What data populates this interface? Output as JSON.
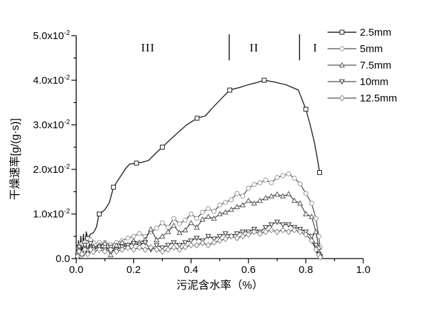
{
  "figure": {
    "background": "#ffffff",
    "line_color": "#1a1a1a"
  },
  "chart_data": {
    "type": "line",
    "title": "",
    "xlabel": "污泥含水率（%）",
    "ylabel": "干燥速率[g/(g·s)]",
    "xlim": [
      0,
      1.0
    ],
    "ylim": [
      0,
      0.05
    ],
    "grid": false,
    "legend_position": "top-right",
    "x_ticks": [
      {
        "value": 0.0,
        "label": "0.0"
      },
      {
        "value": 0.2,
        "label": "0.2"
      },
      {
        "value": 0.4,
        "label": "0.4"
      },
      {
        "value": 0.6,
        "label": "0.6"
      },
      {
        "value": 0.8,
        "label": "0.8"
      },
      {
        "value": 1.0,
        "label": "1.0"
      }
    ],
    "x_minor_ticks": [
      0.1,
      0.3,
      0.5,
      0.7,
      0.9
    ],
    "y_ticks": [
      {
        "value": 0.0,
        "label": "0.0",
        "exp": null
      },
      {
        "value": 0.01,
        "label": "1.0x10",
        "exp": "-2"
      },
      {
        "value": 0.02,
        "label": "2.0x10",
        "exp": "-2"
      },
      {
        "value": 0.03,
        "label": "3.0x10",
        "exp": "-2"
      },
      {
        "value": 0.04,
        "label": "4.0x10",
        "exp": "-2"
      },
      {
        "value": 0.05,
        "label": "5.0x10",
        "exp": "-2"
      }
    ],
    "y_minor_ticks": [
      0.005,
      0.015,
      0.025,
      0.035,
      0.045
    ],
    "regions": {
      "dividers_x": [
        0.533,
        0.778
      ],
      "labels": [
        {
          "text": "III",
          "x": 0.25
        },
        {
          "text": "II",
          "x": 0.62
        },
        {
          "text": "I",
          "x": 0.833
        }
      ]
    },
    "series": [
      {
        "name": "2.5mm",
        "marker": "square",
        "color": "#1a1a1a",
        "line_width": 1.4,
        "marker_every": 4,
        "points": [
          [
            0.005,
            0.0005
          ],
          [
            0.008,
            0.004
          ],
          [
            0.012,
            0.001
          ],
          [
            0.016,
            0.005
          ],
          [
            0.02,
            0.0015
          ],
          [
            0.025,
            0.0055
          ],
          [
            0.03,
            0.002
          ],
          [
            0.035,
            0.006
          ],
          [
            0.04,
            0.0045
          ],
          [
            0.05,
            0.0055
          ],
          [
            0.06,
            0.0058
          ],
          [
            0.07,
            0.007
          ],
          [
            0.08,
            0.01
          ],
          [
            0.09,
            0.0104
          ],
          [
            0.1,
            0.011
          ],
          [
            0.115,
            0.0125
          ],
          [
            0.13,
            0.016
          ],
          [
            0.15,
            0.018
          ],
          [
            0.17,
            0.02
          ],
          [
            0.186,
            0.0212
          ],
          [
            0.21,
            0.0214
          ],
          [
            0.23,
            0.0216
          ],
          [
            0.252,
            0.022
          ],
          [
            0.275,
            0.0235
          ],
          [
            0.3,
            0.025
          ],
          [
            0.326,
            0.0266
          ],
          [
            0.35,
            0.028
          ],
          [
            0.385,
            0.03
          ],
          [
            0.421,
            0.0315
          ],
          [
            0.45,
            0.032
          ],
          [
            0.47,
            0.0335
          ],
          [
            0.5,
            0.0355
          ],
          [
            0.535,
            0.0378
          ],
          [
            0.57,
            0.0384
          ],
          [
            0.6,
            0.039
          ],
          [
            0.625,
            0.0394
          ],
          [
            0.655,
            0.04
          ],
          [
            0.69,
            0.0396
          ],
          [
            0.73,
            0.039
          ],
          [
            0.774,
            0.0378
          ],
          [
            0.8,
            0.0335
          ],
          [
            0.815,
            0.03
          ],
          [
            0.83,
            0.026
          ],
          [
            0.84,
            0.0225
          ],
          [
            0.848,
            0.0193
          ]
        ]
      },
      {
        "name": "5mm",
        "marker": "circle",
        "color": "#999999",
        "line_width": 1,
        "marker_every": 1,
        "points": [
          [
            0.005,
            0.001
          ],
          [
            0.01,
            0.0028
          ],
          [
            0.015,
            0.0006
          ],
          [
            0.02,
            0.0032
          ],
          [
            0.025,
            0.0012
          ],
          [
            0.03,
            0.0036
          ],
          [
            0.04,
            0.002
          ],
          [
            0.05,
            0.0042
          ],
          [
            0.06,
            0.0036
          ],
          [
            0.07,
            0.003
          ],
          [
            0.08,
            0.0036
          ],
          [
            0.09,
            0.003
          ],
          [
            0.1,
            0.0036
          ],
          [
            0.12,
            0.0031
          ],
          [
            0.14,
            0.0036
          ],
          [
            0.16,
            0.004
          ],
          [
            0.18,
            0.0046
          ],
          [
            0.2,
            0.005
          ],
          [
            0.22,
            0.0056
          ],
          [
            0.24,
            0.005
          ],
          [
            0.26,
            0.006
          ],
          [
            0.28,
            0.0068
          ],
          [
            0.3,
            0.008
          ],
          [
            0.32,
            0.007
          ],
          [
            0.34,
            0.009
          ],
          [
            0.36,
            0.0078
          ],
          [
            0.38,
            0.0086
          ],
          [
            0.4,
            0.01
          ],
          [
            0.42,
            0.009
          ],
          [
            0.44,
            0.0104
          ],
          [
            0.46,
            0.0112
          ],
          [
            0.48,
            0.0106
          ],
          [
            0.5,
            0.012
          ],
          [
            0.52,
            0.0126
          ],
          [
            0.54,
            0.0132
          ],
          [
            0.56,
            0.0146
          ],
          [
            0.58,
            0.014
          ],
          [
            0.6,
            0.0158
          ],
          [
            0.62,
            0.0166
          ],
          [
            0.64,
            0.017
          ],
          [
            0.66,
            0.0176
          ],
          [
            0.68,
            0.017
          ],
          [
            0.7,
            0.0182
          ],
          [
            0.72,
            0.0186
          ],
          [
            0.74,
            0.019
          ],
          [
            0.76,
            0.018
          ],
          [
            0.78,
            0.0168
          ],
          [
            0.8,
            0.0146
          ],
          [
            0.82,
            0.0124
          ],
          [
            0.835,
            0.009
          ],
          [
            0.845,
            0.005
          ],
          [
            0.85,
            0.0025
          ]
        ]
      },
      {
        "name": "7.5mm",
        "marker": "triangle-up",
        "color": "#555555",
        "line_width": 1,
        "marker_every": 1,
        "points": [
          [
            0.005,
            0.0006
          ],
          [
            0.01,
            0.0022
          ],
          [
            0.02,
            0.001
          ],
          [
            0.03,
            0.003
          ],
          [
            0.04,
            0.0016
          ],
          [
            0.05,
            0.003
          ],
          [
            0.06,
            0.0026
          ],
          [
            0.08,
            0.003
          ],
          [
            0.1,
            0.0034
          ],
          [
            0.12,
            0.0008
          ],
          [
            0.14,
            0.003
          ],
          [
            0.16,
            0.0036
          ],
          [
            0.18,
            0.003
          ],
          [
            0.2,
            0.004
          ],
          [
            0.22,
            0.0036
          ],
          [
            0.24,
            0.0042
          ],
          [
            0.26,
            0.0066
          ],
          [
            0.28,
            0.0042
          ],
          [
            0.3,
            0.005
          ],
          [
            0.32,
            0.006
          ],
          [
            0.34,
            0.0074
          ],
          [
            0.36,
            0.0058
          ],
          [
            0.38,
            0.0064
          ],
          [
            0.4,
            0.008
          ],
          [
            0.42,
            0.007
          ],
          [
            0.44,
            0.0088
          ],
          [
            0.46,
            0.0094
          ],
          [
            0.48,
            0.009
          ],
          [
            0.5,
            0.01
          ],
          [
            0.52,
            0.0104
          ],
          [
            0.54,
            0.011
          ],
          [
            0.56,
            0.0116
          ],
          [
            0.58,
            0.012
          ],
          [
            0.6,
            0.013
          ],
          [
            0.62,
            0.0124
          ],
          [
            0.64,
            0.013
          ],
          [
            0.66,
            0.0136
          ],
          [
            0.68,
            0.014
          ],
          [
            0.7,
            0.0144
          ],
          [
            0.72,
            0.014
          ],
          [
            0.74,
            0.0145
          ],
          [
            0.76,
            0.013
          ],
          [
            0.78,
            0.0124
          ],
          [
            0.8,
            0.01
          ],
          [
            0.82,
            0.0094
          ],
          [
            0.835,
            0.006
          ],
          [
            0.845,
            0.0025
          ],
          [
            0.85,
            0.001
          ]
        ]
      },
      {
        "name": "10mm",
        "marker": "triangle-down",
        "color": "#333333",
        "line_width": 1,
        "marker_every": 1,
        "points": [
          [
            0.005,
            0.0008
          ],
          [
            0.01,
            0.0026
          ],
          [
            0.02,
            0.0014
          ],
          [
            0.03,
            0.003
          ],
          [
            0.04,
            0.0018
          ],
          [
            0.05,
            0.0034
          ],
          [
            0.06,
            0.002
          ],
          [
            0.08,
            0.0026
          ],
          [
            0.1,
            0.002
          ],
          [
            0.12,
            0.0026
          ],
          [
            0.14,
            0.002
          ],
          [
            0.16,
            0.0026
          ],
          [
            0.18,
            0.003
          ],
          [
            0.2,
            0.0034
          ],
          [
            0.22,
            0.003
          ],
          [
            0.24,
            0.0036
          ],
          [
            0.26,
            0.002
          ],
          [
            0.28,
            0.003
          ],
          [
            0.3,
            0.0024
          ],
          [
            0.32,
            0.003
          ],
          [
            0.34,
            0.0036
          ],
          [
            0.36,
            0.003
          ],
          [
            0.38,
            0.0036
          ],
          [
            0.4,
            0.004
          ],
          [
            0.42,
            0.0046
          ],
          [
            0.44,
            0.004
          ],
          [
            0.46,
            0.005
          ],
          [
            0.48,
            0.0044
          ],
          [
            0.5,
            0.005
          ],
          [
            0.52,
            0.0056
          ],
          [
            0.54,
            0.005
          ],
          [
            0.56,
            0.0056
          ],
          [
            0.58,
            0.006
          ],
          [
            0.6,
            0.006
          ],
          [
            0.62,
            0.0066
          ],
          [
            0.64,
            0.006
          ],
          [
            0.66,
            0.007
          ],
          [
            0.68,
            0.0076
          ],
          [
            0.7,
            0.0082
          ],
          [
            0.72,
            0.0076
          ],
          [
            0.74,
            0.0076
          ],
          [
            0.76,
            0.007
          ],
          [
            0.78,
            0.0066
          ],
          [
            0.8,
            0.006
          ],
          [
            0.82,
            0.005
          ],
          [
            0.835,
            0.003
          ],
          [
            0.845,
            0.001
          ],
          [
            0.85,
            0.0005
          ]
        ]
      },
      {
        "name": "12.5mm",
        "marker": "diamond",
        "color": "#888888",
        "line_width": 1,
        "marker_every": 1,
        "points": [
          [
            0.005,
            0.0005
          ],
          [
            0.01,
            0.0016
          ],
          [
            0.02,
            0.001
          ],
          [
            0.03,
            0.002
          ],
          [
            0.04,
            0.001
          ],
          [
            0.05,
            0.002
          ],
          [
            0.06,
            0.0015
          ],
          [
            0.08,
            0.002
          ],
          [
            0.1,
            0.0016
          ],
          [
            0.12,
            0.002
          ],
          [
            0.14,
            0.0016
          ],
          [
            0.16,
            0.002
          ],
          [
            0.18,
            0.0024
          ],
          [
            0.2,
            0.002
          ],
          [
            0.22,
            0.0025
          ],
          [
            0.24,
            0.002
          ],
          [
            0.26,
            0.0025
          ],
          [
            0.28,
            0.002
          ],
          [
            0.3,
            0.0016
          ],
          [
            0.32,
            0.002
          ],
          [
            0.34,
            0.0025
          ],
          [
            0.36,
            0.002
          ],
          [
            0.38,
            0.0026
          ],
          [
            0.4,
            0.003
          ],
          [
            0.42,
            0.003
          ],
          [
            0.44,
            0.0035
          ],
          [
            0.46,
            0.003
          ],
          [
            0.48,
            0.0036
          ],
          [
            0.5,
            0.004
          ],
          [
            0.52,
            0.0044
          ],
          [
            0.54,
            0.005
          ],
          [
            0.56,
            0.0046
          ],
          [
            0.58,
            0.005
          ],
          [
            0.6,
            0.0054
          ],
          [
            0.62,
            0.006
          ],
          [
            0.64,
            0.0056
          ],
          [
            0.66,
            0.006
          ],
          [
            0.68,
            0.0064
          ],
          [
            0.7,
            0.006
          ],
          [
            0.72,
            0.0064
          ],
          [
            0.74,
            0.006
          ],
          [
            0.76,
            0.0064
          ],
          [
            0.78,
            0.006
          ],
          [
            0.8,
            0.0054
          ],
          [
            0.82,
            0.004
          ],
          [
            0.835,
            0.002
          ],
          [
            0.845,
            0.0008
          ],
          [
            0.85,
            0.0003
          ]
        ]
      }
    ]
  }
}
